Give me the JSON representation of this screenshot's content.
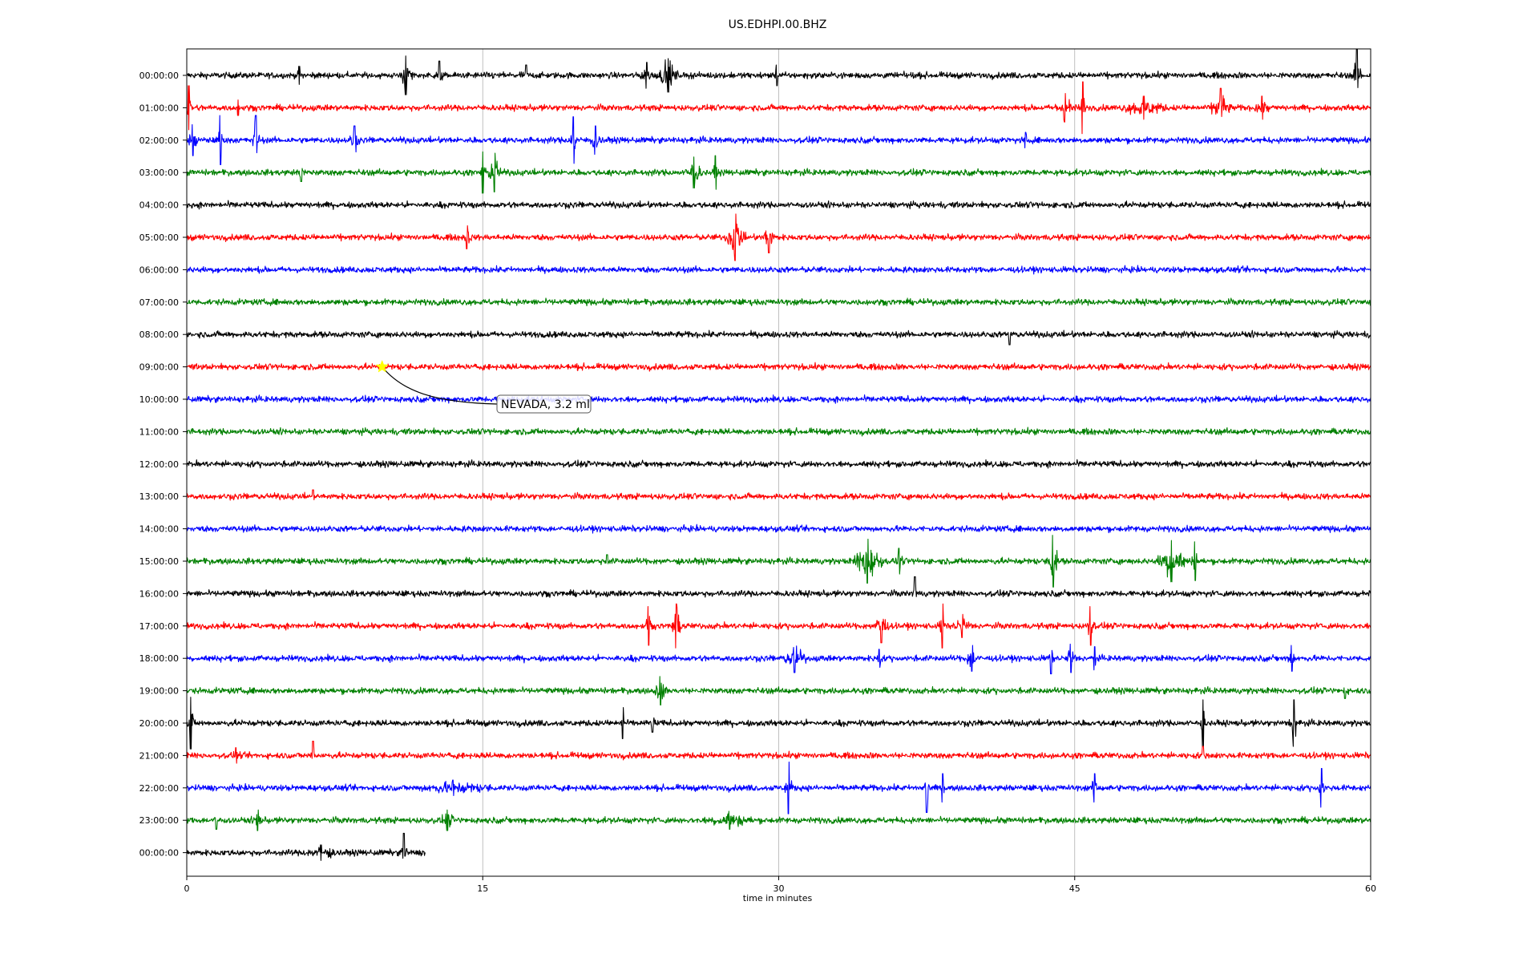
{
  "chart_data": {
    "type": "line",
    "title": "US.EDHPI.00.BHZ",
    "xlabel": "time in minutes",
    "ylabel": "",
    "xlim": [
      0,
      60
    ],
    "x_ticks": [
      0,
      15,
      30,
      45,
      60
    ],
    "x_tick_labels": [
      "0",
      "15",
      "30",
      "45",
      "60"
    ],
    "grid": "vertical at x ticks",
    "colors_cycle": [
      "#000000",
      "#ff0000",
      "#0000ff",
      "#008000"
    ],
    "rows": [
      {
        "label": "00:00:00",
        "color": "#000000",
        "end_minute": 60,
        "events": [
          {
            "t": 5.7,
            "amp": 0.35,
            "dur": 0.3
          },
          {
            "t": 11.1,
            "amp": 0.75,
            "dur": 0.9
          },
          {
            "t": 12.8,
            "amp": 0.55,
            "dur": 0.6
          },
          {
            "t": 17.2,
            "amp": 0.4,
            "dur": 0.3
          },
          {
            "t": 23.3,
            "amp": 0.5,
            "dur": 1.0
          },
          {
            "t": 24.4,
            "amp": 0.65,
            "dur": 1.4
          },
          {
            "t": 29.9,
            "amp": 0.4,
            "dur": 0.3
          },
          {
            "t": 59.3,
            "amp": 1.0,
            "dur": 0.6
          }
        ]
      },
      {
        "label": "01:00:00",
        "color": "#ff0000",
        "end_minute": 60,
        "events": [
          {
            "t": 0.1,
            "amp": 0.85,
            "dur": 0.4
          },
          {
            "t": 2.6,
            "amp": 0.3,
            "dur": 0.3
          },
          {
            "t": 44.5,
            "amp": 0.55,
            "dur": 1.5
          },
          {
            "t": 45.4,
            "amp": 1.0,
            "dur": 0.3
          },
          {
            "t": 48.5,
            "amp": 0.45,
            "dur": 3.5
          },
          {
            "t": 52.4,
            "amp": 0.75,
            "dur": 1.3
          },
          {
            "t": 54.5,
            "amp": 0.45,
            "dur": 1.2
          }
        ]
      },
      {
        "label": "02:00:00",
        "color": "#0000ff",
        "end_minute": 60,
        "events": [
          {
            "t": 0.3,
            "amp": 0.6,
            "dur": 0.8
          },
          {
            "t": 1.7,
            "amp": 0.95,
            "dur": 0.3
          },
          {
            "t": 3.5,
            "amp": 0.95,
            "dur": 0.5
          },
          {
            "t": 8.5,
            "amp": 0.55,
            "dur": 0.7
          },
          {
            "t": 19.6,
            "amp": 0.9,
            "dur": 0.5
          },
          {
            "t": 20.7,
            "amp": 0.55,
            "dur": 0.9
          },
          {
            "t": 42.5,
            "amp": 0.3,
            "dur": 0.5
          }
        ]
      },
      {
        "label": "03:00:00",
        "color": "#008000",
        "end_minute": 60,
        "events": [
          {
            "t": 5.8,
            "amp": 0.35,
            "dur": 0.4
          },
          {
            "t": 15.0,
            "amp": 0.8,
            "dur": 0.4
          },
          {
            "t": 15.6,
            "amp": 0.75,
            "dur": 0.9
          },
          {
            "t": 25.7,
            "amp": 0.6,
            "dur": 1.2
          },
          {
            "t": 26.8,
            "amp": 0.65,
            "dur": 0.3
          }
        ]
      },
      {
        "label": "04:00:00",
        "color": "#000000",
        "end_minute": 60,
        "events": []
      },
      {
        "label": "05:00:00",
        "color": "#ff0000",
        "end_minute": 60,
        "events": [
          {
            "t": 14.2,
            "amp": 0.45,
            "dur": 0.7
          },
          {
            "t": 27.8,
            "amp": 0.9,
            "dur": 1.3
          },
          {
            "t": 29.5,
            "amp": 0.6,
            "dur": 0.8
          }
        ]
      },
      {
        "label": "06:00:00",
        "color": "#0000ff",
        "end_minute": 60,
        "events": []
      },
      {
        "label": "07:00:00",
        "color": "#008000",
        "end_minute": 60,
        "events": []
      },
      {
        "label": "08:00:00",
        "color": "#000000",
        "end_minute": 60,
        "events": [
          {
            "t": 41.7,
            "amp": 0.4,
            "dur": 0.4
          }
        ]
      },
      {
        "label": "09:00:00",
        "color": "#ff0000",
        "end_minute": 60,
        "events": []
      },
      {
        "label": "10:00:00",
        "color": "#0000ff",
        "end_minute": 60,
        "events": []
      },
      {
        "label": "11:00:00",
        "color": "#008000",
        "end_minute": 60,
        "events": []
      },
      {
        "label": "12:00:00",
        "color": "#000000",
        "end_minute": 60,
        "events": []
      },
      {
        "label": "13:00:00",
        "color": "#ff0000",
        "end_minute": 60,
        "events": [
          {
            "t": 6.4,
            "amp": 0.25,
            "dur": 0.3
          }
        ]
      },
      {
        "label": "14:00:00",
        "color": "#0000ff",
        "end_minute": 60,
        "events": []
      },
      {
        "label": "15:00:00",
        "color": "#008000",
        "end_minute": 60,
        "events": [
          {
            "t": 21.3,
            "amp": 0.25,
            "dur": 0.3
          },
          {
            "t": 34.5,
            "amp": 0.85,
            "dur": 2.0
          },
          {
            "t": 36.1,
            "amp": 0.5,
            "dur": 0.6
          },
          {
            "t": 43.9,
            "amp": 1.0,
            "dur": 0.7
          },
          {
            "t": 49.9,
            "amp": 0.8,
            "dur": 2.0
          },
          {
            "t": 51.1,
            "amp": 0.75,
            "dur": 0.5
          }
        ]
      },
      {
        "label": "16:00:00",
        "color": "#000000",
        "end_minute": 60,
        "events": [
          {
            "t": 36.9,
            "amp": 0.65,
            "dur": 0.25
          }
        ]
      },
      {
        "label": "17:00:00",
        "color": "#ff0000",
        "end_minute": 60,
        "events": [
          {
            "t": 23.4,
            "amp": 0.75,
            "dur": 0.4
          },
          {
            "t": 24.8,
            "amp": 0.85,
            "dur": 0.7
          },
          {
            "t": 35.2,
            "amp": 0.65,
            "dur": 1.0
          },
          {
            "t": 38.3,
            "amp": 0.85,
            "dur": 0.4
          },
          {
            "t": 39.3,
            "amp": 0.45,
            "dur": 1.5
          },
          {
            "t": 45.8,
            "amp": 0.75,
            "dur": 0.6
          }
        ]
      },
      {
        "label": "18:00:00",
        "color": "#0000ff",
        "end_minute": 60,
        "events": [
          {
            "t": 30.8,
            "amp": 0.55,
            "dur": 1.7
          },
          {
            "t": 35.1,
            "amp": 0.35,
            "dur": 0.4
          },
          {
            "t": 39.8,
            "amp": 0.5,
            "dur": 1.1
          },
          {
            "t": 43.8,
            "amp": 0.6,
            "dur": 0.4
          },
          {
            "t": 44.8,
            "amp": 0.55,
            "dur": 0.8
          },
          {
            "t": 46.0,
            "amp": 0.45,
            "dur": 0.3
          },
          {
            "t": 56.0,
            "amp": 0.5,
            "dur": 0.6
          }
        ]
      },
      {
        "label": "19:00:00",
        "color": "#008000",
        "end_minute": 60,
        "events": [
          {
            "t": 24.0,
            "amp": 0.55,
            "dur": 1.0
          },
          {
            "t": 58.7,
            "amp": 0.3,
            "dur": 0.3
          }
        ]
      },
      {
        "label": "20:00:00",
        "color": "#000000",
        "end_minute": 60,
        "events": [
          {
            "t": 0.2,
            "amp": 1.0,
            "dur": 0.4
          },
          {
            "t": 22.1,
            "amp": 0.6,
            "dur": 0.25
          },
          {
            "t": 23.6,
            "amp": 0.35,
            "dur": 0.8
          },
          {
            "t": 51.5,
            "amp": 0.9,
            "dur": 0.3
          },
          {
            "t": 56.1,
            "amp": 0.9,
            "dur": 0.6
          }
        ]
      },
      {
        "label": "21:00:00",
        "color": "#ff0000",
        "end_minute": 60,
        "events": [
          {
            "t": 2.5,
            "amp": 0.3,
            "dur": 0.3
          },
          {
            "t": 6.4,
            "amp": 0.55,
            "dur": 0.4
          },
          {
            "t": 51.5,
            "amp": 0.35,
            "dur": 0.3
          }
        ]
      },
      {
        "label": "22:00:00",
        "color": "#0000ff",
        "end_minute": 60,
        "events": [
          {
            "t": 13.5,
            "amp": 0.3,
            "dur": 8.0
          },
          {
            "t": 30.5,
            "amp": 1.0,
            "dur": 0.5
          },
          {
            "t": 37.5,
            "amp": 0.95,
            "dur": 0.4
          },
          {
            "t": 38.3,
            "amp": 0.55,
            "dur": 0.3
          },
          {
            "t": 46.0,
            "amp": 0.55,
            "dur": 0.4
          },
          {
            "t": 57.5,
            "amp": 0.75,
            "dur": 0.4
          }
        ]
      },
      {
        "label": "23:00:00",
        "color": "#008000",
        "end_minute": 60,
        "events": [
          {
            "t": 1.5,
            "amp": 0.35,
            "dur": 0.4
          },
          {
            "t": 3.6,
            "amp": 0.4,
            "dur": 0.6
          },
          {
            "t": 13.2,
            "amp": 0.4,
            "dur": 1.2
          },
          {
            "t": 27.5,
            "amp": 0.35,
            "dur": 4.5
          }
        ]
      },
      {
        "label": "00:00:00",
        "color": "#000000",
        "end_minute": 12.1,
        "events": [
          {
            "t": 6.8,
            "amp": 0.3,
            "dur": 3.5
          },
          {
            "t": 11.0,
            "amp": 0.75,
            "dur": 0.4
          }
        ]
      }
    ],
    "event_marker": {
      "row": 9,
      "minute": 9.9,
      "marker": "star",
      "color": "#ffff00",
      "label": "NEVADA, 3.2 ml"
    }
  }
}
